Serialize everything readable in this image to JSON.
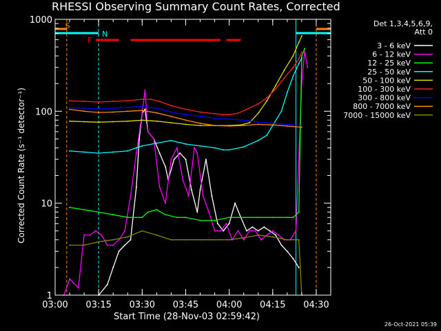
{
  "chart_data": {
    "type": "line",
    "title": "RHESSI Observing Summary Count Rates, Corrected",
    "xlabel": "Start Time (28-Nov-03 02:59:42)",
    "ylabel": "Corrected Count Rate (s⁻¹ detector⁻¹)",
    "ylog": true,
    "xlim_min": [
      0,
      95
    ],
    "ylim": [
      1,
      1000
    ],
    "x_ticks": [
      {
        "t": 0,
        "label": "03:00"
      },
      {
        "t": 15,
        "label": "03:15"
      },
      {
        "t": 30,
        "label": "03:30"
      },
      {
        "t": 45,
        "label": "03:45"
      },
      {
        "t": 60,
        "label": "04:00"
      },
      {
        "t": 75,
        "label": "04:15"
      },
      {
        "t": 90,
        "label": "04:30"
      }
    ],
    "y_ticks": [
      {
        "v": 1,
        "label": "1"
      },
      {
        "v": 10,
        "label": "10"
      },
      {
        "v": 100,
        "label": "100"
      },
      {
        "v": 1000,
        "label": "1000"
      }
    ],
    "legend_header": [
      "Det 1,3,4,5,6,9,",
      "Att 0"
    ],
    "legend_position": "top-right",
    "footer_date": "26-Oct-2021 05:39",
    "flag_labels": {
      "saa": "S",
      "night": "N",
      "flare": "F"
    },
    "flags": {
      "saa_intervals": [
        [
          -3,
          4
        ],
        [
          90,
          100
        ]
      ],
      "night_intervals": [
        [
          -3,
          15
        ],
        [
          83,
          100
        ]
      ],
      "flare_segments": [
        [
          14,
          22
        ],
        [
          26,
          57
        ],
        [
          59,
          64
        ]
      ]
    },
    "series": [
      {
        "name": "3 - 6 keV",
        "color": "#ffffff",
        "points": [
          [
            15,
            1.0
          ],
          [
            18,
            1.3
          ],
          [
            20,
            2.0
          ],
          [
            22,
            3.0
          ],
          [
            24,
            3.5
          ],
          [
            26,
            4.0
          ],
          [
            28,
            15
          ],
          [
            29,
            50
          ],
          [
            30,
            95
          ],
          [
            31,
            105
          ],
          [
            32,
            60
          ],
          [
            34,
            50
          ],
          [
            36,
            35
          ],
          [
            38,
            25
          ],
          [
            39,
            18
          ],
          [
            41,
            30
          ],
          [
            43,
            35
          ],
          [
            45,
            30
          ],
          [
            47,
            14
          ],
          [
            49,
            8
          ],
          [
            50,
            14
          ],
          [
            52,
            30
          ],
          [
            54,
            12
          ],
          [
            56,
            6
          ],
          [
            58,
            5
          ],
          [
            60,
            6
          ],
          [
            62,
            10
          ],
          [
            64,
            7
          ],
          [
            66,
            5
          ],
          [
            68,
            5.5
          ],
          [
            70,
            5
          ],
          [
            72,
            5.5
          ],
          [
            74,
            5
          ],
          [
            76,
            4.5
          ],
          [
            78,
            3.5
          ],
          [
            80,
            3.0
          ],
          [
            82,
            2.5
          ],
          [
            84,
            2.0
          ]
        ]
      },
      {
        "name": "6 - 12 keV",
        "color": "#ff00ff",
        "points": [
          [
            3,
            1.0
          ],
          [
            5,
            1.5
          ],
          [
            8,
            1.2
          ],
          [
            10,
            4.5
          ],
          [
            12,
            4.5
          ],
          [
            14,
            5
          ],
          [
            16,
            4.5
          ],
          [
            18,
            3.5
          ],
          [
            20,
            3.5
          ],
          [
            22,
            4
          ],
          [
            24,
            5
          ],
          [
            26,
            12
          ],
          [
            28,
            35
          ],
          [
            30,
            95
          ],
          [
            31,
            170
          ],
          [
            32,
            60
          ],
          [
            34,
            50
          ],
          [
            36,
            15
          ],
          [
            38,
            10
          ],
          [
            40,
            30
          ],
          [
            42,
            40
          ],
          [
            44,
            18
          ],
          [
            46,
            12
          ],
          [
            48,
            40
          ],
          [
            49,
            35
          ],
          [
            51,
            12
          ],
          [
            53,
            8
          ],
          [
            55,
            5
          ],
          [
            57,
            5
          ],
          [
            59,
            6
          ],
          [
            61,
            4
          ],
          [
            63,
            5
          ],
          [
            65,
            4
          ],
          [
            67,
            5
          ],
          [
            69,
            5
          ],
          [
            71,
            4
          ],
          [
            73,
            4.5
          ],
          [
            75,
            5
          ],
          [
            77,
            4.5
          ],
          [
            79,
            4
          ],
          [
            81,
            4
          ],
          [
            83,
            5
          ],
          [
            85,
            200
          ],
          [
            86,
            450
          ],
          [
            87,
            300
          ]
        ]
      },
      {
        "name": "12 - 25 keV",
        "color": "#00ff00",
        "points": [
          [
            5,
            9
          ],
          [
            10,
            8.5
          ],
          [
            15,
            8
          ],
          [
            20,
            7.5
          ],
          [
            25,
            7
          ],
          [
            30,
            7
          ],
          [
            32,
            8
          ],
          [
            35,
            8.5
          ],
          [
            38,
            7.5
          ],
          [
            42,
            7
          ],
          [
            45,
            7
          ],
          [
            50,
            6.5
          ],
          [
            55,
            6.5
          ],
          [
            60,
            7
          ],
          [
            65,
            7
          ],
          [
            70,
            7
          ],
          [
            75,
            7
          ],
          [
            80,
            7
          ],
          [
            82,
            7
          ],
          [
            84,
            8
          ],
          [
            85,
            400
          ],
          [
            86,
            480
          ]
        ]
      },
      {
        "name": "25 - 50 keV",
        "color": "#00ffff",
        "points": [
          [
            5,
            37
          ],
          [
            10,
            36
          ],
          [
            15,
            35
          ],
          [
            20,
            36
          ],
          [
            25,
            37
          ],
          [
            28,
            40
          ],
          [
            30,
            42
          ],
          [
            35,
            45
          ],
          [
            40,
            48
          ],
          [
            45,
            44
          ],
          [
            50,
            42
          ],
          [
            55,
            40
          ],
          [
            58,
            38
          ],
          [
            60,
            38
          ],
          [
            65,
            41
          ],
          [
            70,
            48
          ],
          [
            73,
            55
          ],
          [
            75,
            70
          ],
          [
            78,
            100
          ],
          [
            80,
            160
          ],
          [
            82,
            240
          ],
          [
            84,
            330
          ],
          [
            85,
            380
          ]
        ]
      },
      {
        "name": "50 - 100 keV",
        "color": "#dddd00",
        "points": [
          [
            5,
            78
          ],
          [
            10,
            77
          ],
          [
            15,
            76
          ],
          [
            20,
            77
          ],
          [
            25,
            78
          ],
          [
            30,
            80
          ],
          [
            35,
            78
          ],
          [
            40,
            75
          ],
          [
            45,
            72
          ],
          [
            50,
            70
          ],
          [
            55,
            70
          ],
          [
            60,
            70
          ],
          [
            64,
            71
          ],
          [
            67,
            75
          ],
          [
            70,
            95
          ],
          [
            73,
            130
          ],
          [
            76,
            190
          ],
          [
            79,
            280
          ],
          [
            82,
            400
          ],
          [
            84,
            560
          ],
          [
            85,
            660
          ]
        ]
      },
      {
        "name": "100 - 300 keV",
        "color": "#ff2222",
        "points": [
          [
            5,
            130
          ],
          [
            10,
            128
          ],
          [
            15,
            126
          ],
          [
            20,
            128
          ],
          [
            25,
            130
          ],
          [
            30,
            135
          ],
          [
            33,
            135
          ],
          [
            36,
            128
          ],
          [
            40,
            115
          ],
          [
            45,
            105
          ],
          [
            50,
            98
          ],
          [
            55,
            94
          ],
          [
            58,
            92
          ],
          [
            60,
            92
          ],
          [
            63,
            95
          ],
          [
            66,
            105
          ],
          [
            70,
            120
          ],
          [
            73,
            140
          ],
          [
            76,
            175
          ],
          [
            79,
            230
          ],
          [
            82,
            300
          ],
          [
            84,
            370
          ],
          [
            85,
            440
          ]
        ]
      },
      {
        "name": "300 - 800 keV",
        "color": "#0000ff",
        "points": [
          [
            5,
            110
          ],
          [
            10,
            108
          ],
          [
            15,
            106
          ],
          [
            20,
            108
          ],
          [
            25,
            110
          ],
          [
            30,
            113
          ],
          [
            35,
            108
          ],
          [
            40,
            98
          ],
          [
            45,
            92
          ],
          [
            50,
            88
          ],
          [
            55,
            84
          ],
          [
            60,
            82
          ],
          [
            65,
            80
          ],
          [
            70,
            76
          ],
          [
            75,
            74
          ],
          [
            80,
            72
          ],
          [
            85,
            70
          ]
        ]
      },
      {
        "name": "800 - 7000 keV",
        "color": "#ff8800",
        "points": [
          [
            5,
            105
          ],
          [
            10,
            100
          ],
          [
            15,
            97
          ],
          [
            20,
            98
          ],
          [
            25,
            100
          ],
          [
            30,
            102
          ],
          [
            35,
            96
          ],
          [
            40,
            88
          ],
          [
            45,
            80
          ],
          [
            50,
            74
          ],
          [
            55,
            70
          ],
          [
            60,
            69
          ],
          [
            65,
            70
          ],
          [
            70,
            72
          ],
          [
            75,
            71
          ],
          [
            80,
            69
          ],
          [
            85,
            67
          ]
        ]
      },
      {
        "name": "7000 - 15000 keV",
        "color": "#888800",
        "points": [
          [
            5,
            3.5
          ],
          [
            10,
            3.5
          ],
          [
            15,
            3.8
          ],
          [
            20,
            4
          ],
          [
            25,
            4.3
          ],
          [
            30,
            5
          ],
          [
            35,
            4.5
          ],
          [
            40,
            4
          ],
          [
            45,
            4
          ],
          [
            50,
            4
          ],
          [
            55,
            4
          ],
          [
            60,
            4
          ],
          [
            65,
            4.2
          ],
          [
            70,
            4.5
          ],
          [
            75,
            4.3
          ],
          [
            80,
            4
          ],
          [
            84,
            4
          ],
          [
            85,
            1
          ]
        ]
      }
    ]
  }
}
